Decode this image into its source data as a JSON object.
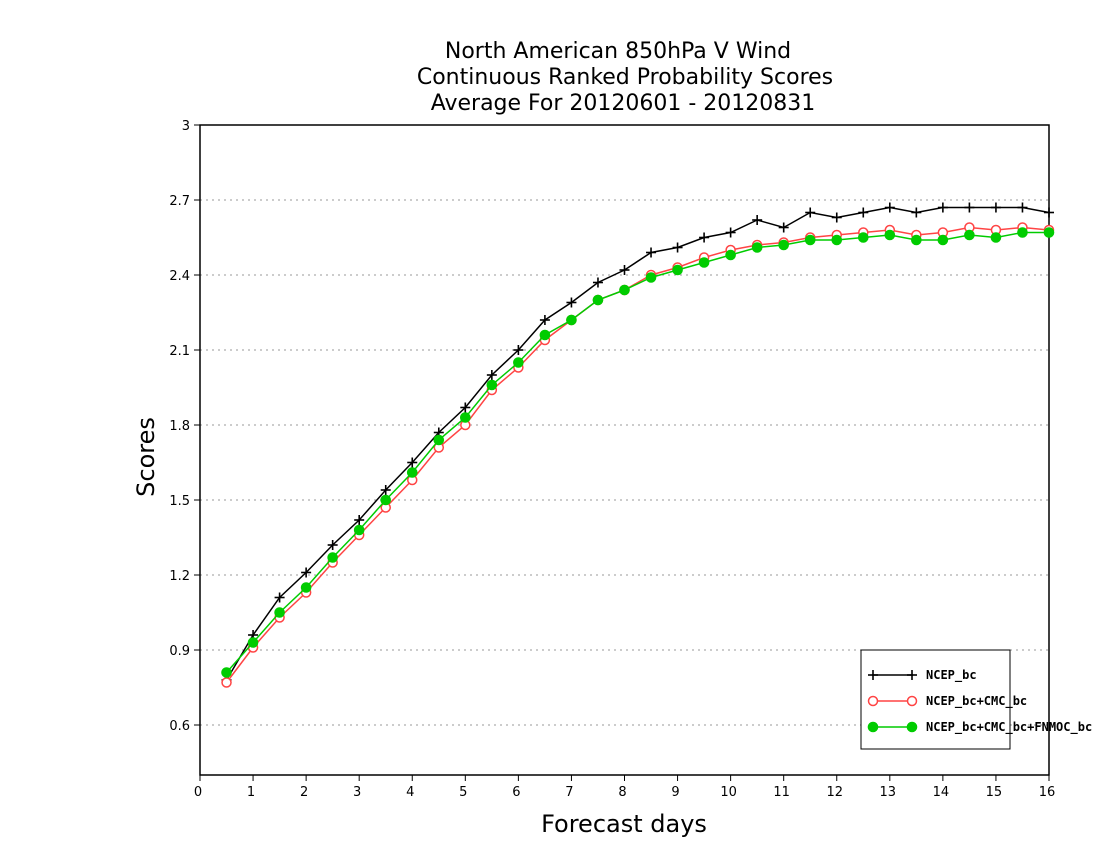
{
  "chart_data": {
    "type": "line",
    "title": [
      "North American 850hPa V Wind",
      "Continuous Ranked Probability Scores",
      "Average For 20120601 - 20120831"
    ],
    "xlabel": "Forecast days",
    "ylabel": "Scores",
    "xlim": [
      0,
      16
    ],
    "ylim": [
      0.4,
      3.0
    ],
    "xticks": [
      0,
      1,
      2,
      3,
      4,
      5,
      6,
      7,
      8,
      9,
      10,
      11,
      12,
      13,
      14,
      15,
      16
    ],
    "yticks": [
      0.6,
      0.9,
      1.2,
      1.5,
      1.8,
      2.1,
      2.4,
      2.7,
      3.0
    ],
    "ytick_labels": [
      "0.6",
      "0.9",
      "1.2",
      "1.5",
      "1.8",
      "2.1",
      "2.4",
      "2.7",
      "3"
    ],
    "grid": {
      "y": true,
      "style": "dotted"
    },
    "legend_position": "bottom-right",
    "x": [
      0.5,
      1,
      1.5,
      2,
      2.5,
      3,
      3.5,
      4,
      4.5,
      5,
      5.5,
      6,
      6.5,
      7,
      7.5,
      8,
      8.5,
      9,
      9.5,
      10,
      10.5,
      11,
      11.5,
      12,
      12.5,
      13,
      13.5,
      14,
      14.5,
      15,
      15.5,
      16
    ],
    "series": [
      {
        "name": "NCEP_bc",
        "color": "#000000",
        "marker": "plus",
        "values": [
          0.78,
          0.96,
          1.11,
          1.21,
          1.32,
          1.42,
          1.54,
          1.65,
          1.77,
          1.87,
          2.0,
          2.1,
          2.22,
          2.29,
          2.37,
          2.42,
          2.49,
          2.51,
          2.55,
          2.57,
          2.62,
          2.59,
          2.65,
          2.63,
          2.65,
          2.67,
          2.65,
          2.67,
          2.67,
          2.67,
          2.67,
          2.65
        ]
      },
      {
        "name": "NCEP_bc+CMC_bc",
        "color": "#ff4444",
        "marker": "open-circle",
        "values": [
          0.77,
          0.91,
          1.03,
          1.13,
          1.25,
          1.36,
          1.47,
          1.58,
          1.71,
          1.8,
          1.94,
          2.03,
          2.14,
          2.22,
          2.3,
          2.34,
          2.4,
          2.43,
          2.47,
          2.5,
          2.52,
          2.53,
          2.55,
          2.56,
          2.57,
          2.58,
          2.56,
          2.57,
          2.59,
          2.58,
          2.59,
          2.58
        ]
      },
      {
        "name": "NCEP_bc+CMC_bc+FNMOC_bc",
        "color": "#00cc00",
        "marker": "filled-circle",
        "values": [
          0.81,
          0.93,
          1.05,
          1.15,
          1.27,
          1.38,
          1.5,
          1.61,
          1.74,
          1.83,
          1.96,
          2.05,
          2.16,
          2.22,
          2.3,
          2.34,
          2.39,
          2.42,
          2.45,
          2.48,
          2.51,
          2.52,
          2.54,
          2.54,
          2.55,
          2.56,
          2.54,
          2.54,
          2.56,
          2.55,
          2.57,
          2.57
        ]
      }
    ]
  }
}
